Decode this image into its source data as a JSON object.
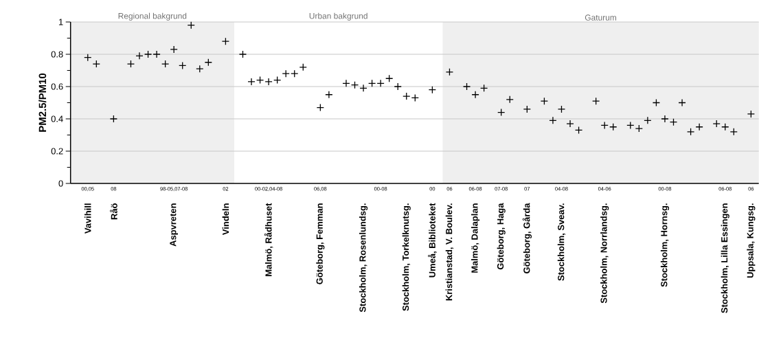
{
  "chart_data": {
    "type": "scatter",
    "ylabel": "PM2.5/PM10",
    "marker": "cross",
    "grid": "y",
    "ylim": [
      0,
      1
    ],
    "yticks": [
      0,
      0.2,
      0.4,
      0.6,
      0.8,
      1
    ],
    "categories": [
      "Vavihill",
      null,
      null,
      "Råö",
      null,
      null,
      null,
      null,
      null,
      null,
      "Aspvreten",
      null,
      null,
      null,
      null,
      null,
      "Vindeln",
      null,
      null,
      null,
      null,
      "Malmö, Rådhuset",
      null,
      null,
      null,
      null,
      null,
      "Göteborg, Femman",
      null,
      null,
      null,
      null,
      "Stockholm, Rosenlundsg.",
      null,
      null,
      null,
      null,
      "Stockholm, Torkelknutsg.",
      null,
      null,
      "Umeå, Biblioteket",
      null,
      "Kristianstad, V. Boulev.",
      null,
      null,
      "Malmö, Dalaplan",
      null,
      null,
      "Göteborg, Haga",
      null,
      null,
      "Göteborg, Gårda",
      null,
      null,
      null,
      "Stockholm, Sveav.",
      null,
      null,
      null,
      null,
      "Stockholm, Norrlandsg.",
      null,
      null,
      null,
      null,
      null,
      null,
      "Stockholm, Hornsg.",
      null,
      null,
      null,
      null,
      null,
      null,
      "Stockholm, Lilla Essingen",
      null,
      null,
      "Uppsala, Kungsg."
    ],
    "bands": [
      {
        "axis": "x",
        "from": "Vavihill",
        "to": "Vindeln",
        "label": "Regional bakgrund",
        "color": "#efefef"
      },
      {
        "axis": "x",
        "from": "Kristianstad, V. Boulev.",
        "to": "Uppsala, Kungsg.",
        "label": "Gaturum",
        "color": "#efefef"
      }
    ],
    "annotations": [
      "Urban bakgrund",
      "00,05",
      "08",
      "98-05,07-08",
      "02",
      "00-02,04-08",
      "06,08",
      "00-08",
      "00",
      "06",
      "06-08",
      "07-08",
      "07",
      "04-08",
      "04-06",
      "00-08",
      "06-08",
      "06"
    ],
    "series": [
      {
        "color": "#000000",
        "values": [
          0.78,
          0.74,
          null,
          0.4,
          null,
          0.74,
          0.79,
          0.8,
          0.8,
          0.74,
          0.83,
          0.73,
          0.98,
          0.71,
          0.75,
          null,
          0.88,
          null,
          0.8,
          0.63,
          0.64,
          0.63,
          0.64,
          0.68,
          0.68,
          0.72,
          null,
          0.47,
          0.55,
          null,
          0.62,
          0.61,
          0.59,
          0.62,
          0.62,
          0.65,
          0.6,
          0.54,
          0.53,
          null,
          0.58,
          null,
          0.69,
          null,
          0.6,
          0.55,
          0.59,
          null,
          0.44,
          0.52,
          null,
          0.46,
          null,
          0.51,
          0.39,
          0.46,
          0.37,
          0.33,
          null,
          0.51,
          0.36,
          0.35,
          null,
          0.36,
          0.34,
          0.39,
          0.5,
          0.4,
          0.38,
          0.5,
          0.32,
          0.35,
          null,
          0.37,
          0.35,
          0.32,
          null,
          0.43
        ]
      }
    ]
  }
}
